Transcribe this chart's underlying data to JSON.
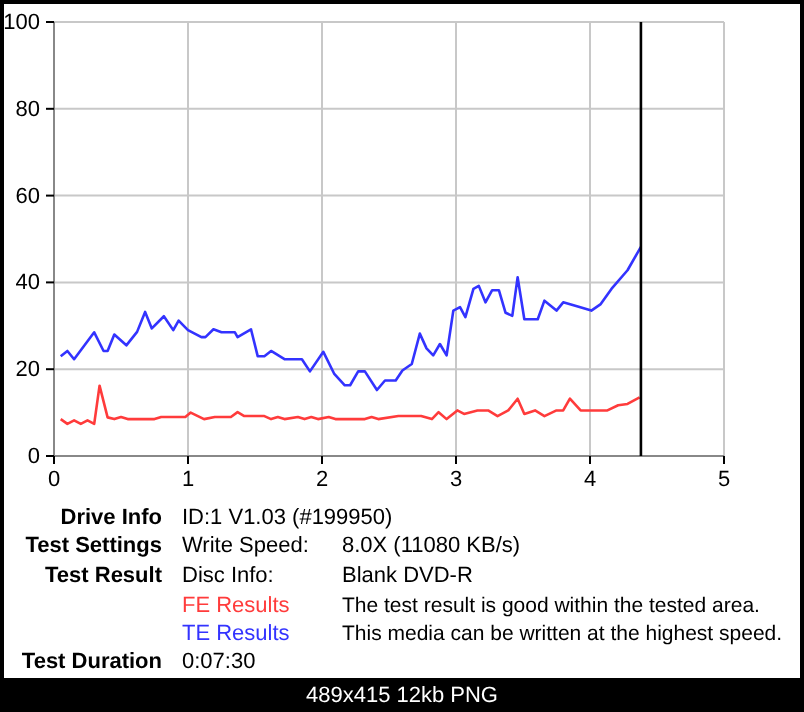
{
  "chart_data": {
    "type": "line",
    "xlim": [
      0,
      5
    ],
    "xticks": [
      0,
      1,
      2,
      3,
      4,
      5
    ],
    "ylim": [
      0,
      100
    ],
    "yticks": [
      0,
      20,
      40,
      60,
      80,
      100
    ],
    "grid": true,
    "legend": "bottom",
    "marker": "none",
    "line_style": "solid",
    "ref_lines": [
      {
        "axis": "x",
        "value": 4.38,
        "color": "#000000"
      }
    ],
    "series": [
      {
        "name": "FE Results",
        "color": "#ff3b3b",
        "x": [
          0.05,
          0.1,
          0.15,
          0.2,
          0.25,
          0.3,
          0.34,
          0.4,
          0.45,
          0.5,
          0.55,
          0.75,
          0.8,
          0.98,
          1.02,
          1.12,
          1.2,
          1.32,
          1.37,
          1.42,
          1.57,
          1.62,
          1.67,
          1.72,
          1.82,
          1.87,
          1.92,
          1.97,
          2.05,
          2.1,
          2.32,
          2.37,
          2.42,
          2.57,
          2.74,
          2.82,
          2.87,
          2.93,
          3.01,
          3.06,
          3.16,
          3.24,
          3.31,
          3.39,
          3.46,
          3.51,
          3.59,
          3.66,
          3.75,
          3.8,
          3.85,
          3.93,
          4.13,
          4.21,
          4.28,
          4.37
        ],
        "values": [
          8.5,
          7.4,
          8.2,
          7.4,
          8.2,
          7.4,
          16.2,
          8.9,
          8.5,
          9,
          8.5,
          8.5,
          9,
          9,
          10,
          8.5,
          9,
          9,
          10.1,
          9.2,
          9.2,
          8.5,
          9,
          8.5,
          9,
          8.5,
          9,
          8.5,
          9,
          8.5,
          8.5,
          9,
          8.5,
          9.2,
          9.2,
          8.5,
          10.1,
          8.5,
          10.5,
          9.7,
          10.5,
          10.5,
          9.2,
          10.5,
          13.2,
          9.7,
          10.5,
          9.2,
          10.5,
          10.5,
          13.2,
          10.5,
          10.5,
          11.7,
          12,
          13.5
        ]
      },
      {
        "name": "TE Results",
        "color": "#3333ff",
        "x": [
          0.05,
          0.1,
          0.15,
          0.3,
          0.37,
          0.4,
          0.45,
          0.54,
          0.62,
          0.68,
          0.73,
          0.82,
          0.89,
          0.93,
          1.0,
          1.1,
          1.13,
          1.19,
          1.25,
          1.35,
          1.37,
          1.47,
          1.52,
          1.57,
          1.62,
          1.72,
          1.85,
          1.91,
          2.01,
          2.09,
          2.17,
          2.21,
          2.27,
          2.32,
          2.41,
          2.47,
          2.55,
          2.6,
          2.67,
          2.73,
          2.78,
          2.83,
          2.88,
          2.93,
          2.98,
          3.03,
          3.07,
          3.13,
          3.17,
          3.22,
          3.27,
          3.32,
          3.37,
          3.42,
          3.46,
          3.51,
          3.61,
          3.66,
          3.75,
          3.8,
          3.89,
          4.01,
          4.08,
          4.16,
          4.28,
          4.38
        ],
        "values": [
          23,
          24.2,
          22.3,
          28.5,
          24.2,
          24.2,
          28,
          25.5,
          28.6,
          33.2,
          29.4,
          32.2,
          29,
          31.2,
          29,
          27.4,
          27.4,
          29.2,
          28.5,
          28.5,
          27.4,
          29.2,
          23,
          23,
          24.2,
          22.3,
          22.3,
          19.5,
          24,
          19,
          16.3,
          16.3,
          19.5,
          19.5,
          15.2,
          17.4,
          17.4,
          19.7,
          21.2,
          28.2,
          24.8,
          23.2,
          25.8,
          23.2,
          33.5,
          34.3,
          32,
          38.5,
          39.2,
          35.4,
          38.2,
          38.2,
          33,
          32.3,
          41.2,
          31.5,
          31.5,
          35.8,
          33.5,
          35.4,
          34.6,
          33.5,
          35,
          38.5,
          42.8,
          48.2
        ]
      }
    ],
    "annotations": [
      "Drive Info",
      "ID:1 V1.03 (#199950)",
      "Test Settings",
      "Write Speed:",
      "8.0X (11080 KB/s)",
      "Test Result",
      "Disc Info:",
      "Blank DVD-R",
      "The test result is good within the tested area. This media can be written at the highest speed.",
      "Test Duration",
      "0:07:30",
      "489x415 12kb PNG"
    ]
  }
}
